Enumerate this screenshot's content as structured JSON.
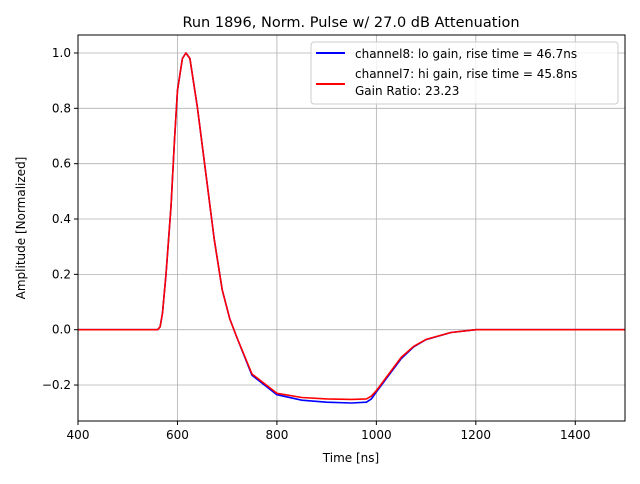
{
  "chart_data": {
    "type": "line",
    "title": "Run 1896, Norm. Pulse w/ 27.0 dB Attenuation",
    "xlabel": "Time [ns]",
    "ylabel": "Amplitude [Normalized]",
    "xlim": [
      400,
      1500
    ],
    "ylim": [
      -0.33,
      1.065
    ],
    "grid": true,
    "legend_position": "top-right",
    "x_ticks": [
      400,
      600,
      800,
      1000,
      1200,
      1400
    ],
    "x_tick_labels": [
      "400",
      "600",
      "800",
      "1000",
      "1200",
      "1400"
    ],
    "y_ticks": [
      -0.2,
      0.0,
      0.2,
      0.4,
      0.6,
      0.8,
      1.0
    ],
    "y_tick_labels": [
      "−0.2",
      "0.0",
      "0.2",
      "0.4",
      "0.6",
      "0.8",
      "1.0"
    ],
    "x": [
      400,
      500,
      560,
      565,
      570,
      577,
      587,
      594,
      600,
      610,
      617,
      625,
      640,
      657,
      674,
      690,
      705,
      720,
      750,
      800,
      850,
      900,
      950,
      980,
      990,
      1000,
      1025,
      1050,
      1075,
      1100,
      1150,
      1200,
      1300,
      1400,
      1500
    ],
    "series": [
      {
        "name": "channel8: lo gain, rise time = 46.7ns",
        "color": "#0000ff",
        "values": [
          0,
          0,
          0,
          0.01,
          0.06,
          0.2,
          0.445,
          0.686,
          0.866,
          0.98,
          1.0,
          0.98,
          0.806,
          0.566,
          0.325,
          0.144,
          0.04,
          -0.03,
          -0.165,
          -0.235,
          -0.255,
          -0.262,
          -0.265,
          -0.262,
          -0.25,
          -0.225,
          -0.165,
          -0.105,
          -0.062,
          -0.036,
          -0.01,
          0,
          0,
          0,
          0
        ]
      },
      {
        "name": "channel7: hi gain, rise time = 45.8ns",
        "color": "#ff0000",
        "values": [
          0,
          0,
          0,
          0.01,
          0.06,
          0.2,
          0.445,
          0.686,
          0.866,
          0.98,
          1.0,
          0.98,
          0.806,
          0.566,
          0.325,
          0.144,
          0.04,
          -0.03,
          -0.16,
          -0.23,
          -0.245,
          -0.25,
          -0.252,
          -0.25,
          -0.24,
          -0.22,
          -0.16,
          -0.1,
          -0.06,
          -0.035,
          -0.01,
          0,
          0,
          0,
          0
        ]
      }
    ],
    "legend_extra": "Gain Ratio: 23.23"
  }
}
